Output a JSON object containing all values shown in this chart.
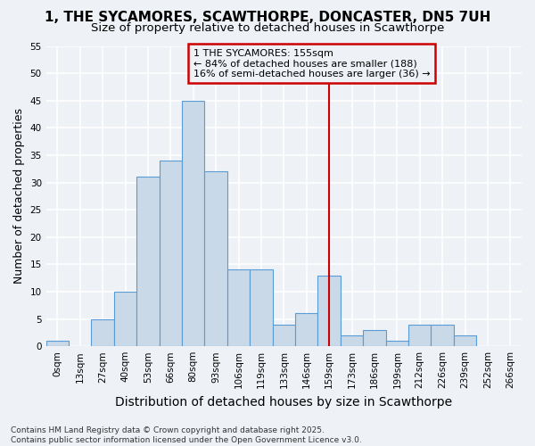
{
  "title_line1": "1, THE SYCAMORES, SCAWTHORPE, DONCASTER, DN5 7UH",
  "title_line2": "Size of property relative to detached houses in Scawthorpe",
  "xlabel": "Distribution of detached houses by size in Scawthorpe",
  "ylabel": "Number of detached properties",
  "bar_labels": [
    "0sqm",
    "13sqm",
    "27sqm",
    "40sqm",
    "53sqm",
    "66sqm",
    "80sqm",
    "93sqm",
    "106sqm",
    "119sqm",
    "133sqm",
    "146sqm",
    "159sqm",
    "173sqm",
    "186sqm",
    "199sqm",
    "212sqm",
    "226sqm",
    "239sqm",
    "252sqm",
    "266sqm"
  ],
  "bar_values": [
    1,
    0,
    5,
    10,
    31,
    34,
    45,
    32,
    14,
    14,
    4,
    6,
    13,
    2,
    3,
    1,
    4,
    4,
    2,
    0,
    0
  ],
  "bar_color": "#c9d9e8",
  "bar_edge_color": "#5b9bd5",
  "ylim": [
    0,
    55
  ],
  "yticks": [
    0,
    5,
    10,
    15,
    20,
    25,
    30,
    35,
    40,
    45,
    50,
    55
  ],
  "vline_x": 12.0,
  "vline_color": "#cc0000",
  "annotation_text": "1 THE SYCAMORES: 155sqm\n← 84% of detached houses are smaller (188)\n16% of semi-detached houses are larger (36) →",
  "annotation_box_color": "#cc0000",
  "footnote": "Contains HM Land Registry data © Crown copyright and database right 2025.\nContains public sector information licensed under the Open Government Licence v3.0.",
  "background_color": "#eef2f7",
  "grid_color": "#ffffff",
  "title_fontsize": 11,
  "subtitle_fontsize": 9.5,
  "axis_label_fontsize": 9,
  "tick_fontsize": 7.5,
  "annotation_fontsize": 8,
  "footnote_fontsize": 6.5
}
